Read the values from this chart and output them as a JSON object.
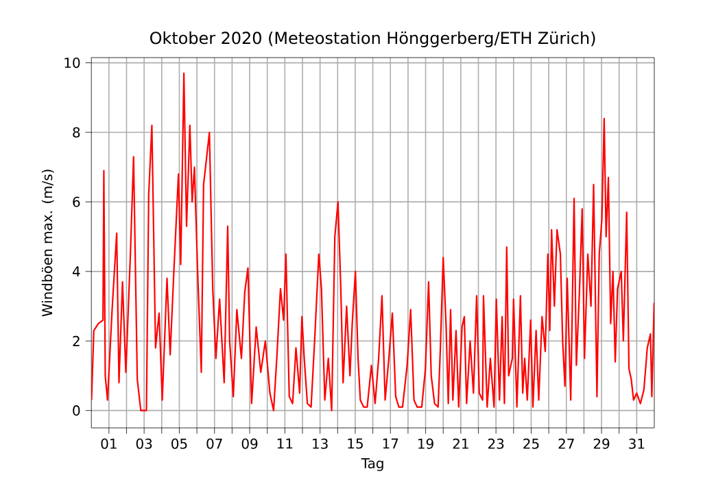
{
  "chart_data": {
    "type": "line",
    "title": "Oktober 2020  (Meteostation Hönggerberg/ETH Zürich)",
    "xlabel": "Tag",
    "ylabel": "Windböen max. (m/s)",
    "xlim": [
      0,
      32
    ],
    "ylim": [
      -0.5,
      10.15
    ],
    "grid": true,
    "xticks": [
      {
        "value": 1,
        "label": "01"
      },
      {
        "value": 2,
        "label": null
      },
      {
        "value": 3,
        "label": "03"
      },
      {
        "value": 4,
        "label": null
      },
      {
        "value": 5,
        "label": "05"
      },
      {
        "value": 6,
        "label": null
      },
      {
        "value": 7,
        "label": "07"
      },
      {
        "value": 8,
        "label": null
      },
      {
        "value": 9,
        "label": "09"
      },
      {
        "value": 10,
        "label": null
      },
      {
        "value": 11,
        "label": "11"
      },
      {
        "value": 12,
        "label": null
      },
      {
        "value": 13,
        "label": "13"
      },
      {
        "value": 14,
        "label": null
      },
      {
        "value": 15,
        "label": "15"
      },
      {
        "value": 16,
        "label": null
      },
      {
        "value": 17,
        "label": "17"
      },
      {
        "value": 18,
        "label": null
      },
      {
        "value": 19,
        "label": "19"
      },
      {
        "value": 20,
        "label": null
      },
      {
        "value": 21,
        "label": "21"
      },
      {
        "value": 22,
        "label": null
      },
      {
        "value": 23,
        "label": "23"
      },
      {
        "value": 24,
        "label": null
      },
      {
        "value": 25,
        "label": "25"
      },
      {
        "value": 26,
        "label": null
      },
      {
        "value": 27,
        "label": "27"
      },
      {
        "value": 28,
        "label": null
      },
      {
        "value": 29,
        "label": "29"
      },
      {
        "value": 30,
        "label": null
      },
      {
        "value": 31,
        "label": "31"
      }
    ],
    "yticks": [
      0,
      2,
      4,
      6,
      8,
      10
    ],
    "series": [
      {
        "color": "#ff0000",
        "x": [
          0.01,
          0.14,
          0.4,
          0.66,
          0.71,
          0.79,
          0.92,
          1.18,
          1.44,
          1.57,
          1.77,
          1.96,
          2.22,
          2.4,
          2.61,
          2.81,
          3.13,
          3.26,
          3.44,
          3.65,
          3.85,
          4.03,
          4.3,
          4.48,
          4.69,
          4.95,
          5.08,
          5.26,
          5.41,
          5.6,
          5.73,
          5.86,
          6.04,
          6.25,
          6.38,
          6.71,
          6.9,
          7.08,
          7.29,
          7.55,
          7.75,
          7.86,
          8.07,
          8.27,
          8.53,
          8.72,
          8.9,
          9.11,
          9.37,
          9.63,
          9.89,
          10.15,
          10.36,
          10.54,
          10.75,
          10.93,
          11.06,
          11.25,
          11.44,
          11.63,
          11.84,
          11.97,
          12.1,
          12.28,
          12.49,
          12.69,
          12.93,
          13.08,
          13.27,
          13.47,
          13.66,
          13.84,
          14.02,
          14.18,
          14.31,
          14.51,
          14.7,
          14.83,
          15.01,
          15.16,
          15.29,
          15.48,
          15.68,
          15.92,
          16.13,
          16.33,
          16.52,
          16.7,
          16.91,
          17.11,
          17.3,
          17.48,
          17.69,
          17.95,
          18.15,
          18.34,
          18.52,
          18.78,
          18.99,
          19.17,
          19.32,
          19.51,
          19.71,
          19.84,
          20.0,
          20.16,
          20.29,
          20.42,
          20.55,
          20.73,
          20.88,
          21.07,
          21.2,
          21.33,
          21.53,
          21.72,
          21.9,
          22.05,
          22.24,
          22.29,
          22.5,
          22.68,
          22.89,
          23.02,
          23.2,
          23.35,
          23.48,
          23.61,
          23.72,
          23.93,
          24.0,
          24.19,
          24.39,
          24.52,
          24.63,
          24.78,
          24.97,
          25.1,
          25.28,
          25.43,
          25.62,
          25.8,
          25.95,
          26.06,
          26.16,
          26.32,
          26.47,
          26.66,
          26.79,
          26.92,
          27.05,
          27.25,
          27.44,
          27.57,
          27.75,
          27.9,
          28.03,
          28.22,
          28.4,
          28.55,
          28.74,
          28.87,
          29.02,
          29.15,
          29.26,
          29.39,
          29.52,
          29.65,
          29.78,
          29.91,
          30.12,
          30.24,
          30.43,
          30.56,
          30.69,
          30.82,
          31.0,
          31.21,
          31.41,
          31.6,
          31.78,
          31.86,
          31.99
        ],
        "values": [
          0.3,
          2.3,
          2.5,
          2.6,
          6.9,
          1.0,
          0.3,
          2.9,
          5.1,
          0.8,
          3.7,
          1.1,
          4.5,
          7.3,
          0.9,
          0.0,
          0.0,
          6.2,
          8.2,
          1.8,
          2.8,
          0.3,
          3.8,
          1.6,
          4.0,
          6.8,
          4.2,
          9.7,
          5.3,
          8.2,
          6.0,
          7.0,
          4.0,
          1.1,
          6.5,
          8.0,
          3.5,
          1.5,
          3.2,
          0.8,
          5.3,
          2.0,
          0.4,
          2.9,
          1.5,
          3.4,
          4.1,
          0.2,
          2.4,
          1.1,
          2.0,
          0.5,
          0.0,
          1.5,
          3.5,
          2.6,
          4.5,
          0.4,
          0.2,
          1.8,
          0.5,
          2.7,
          1.5,
          0.2,
          0.1,
          2.0,
          4.5,
          3.5,
          0.3,
          1.5,
          0.0,
          5.0,
          6.0,
          3.5,
          0.8,
          3.0,
          1.0,
          2.5,
          4.0,
          1.5,
          0.3,
          0.1,
          0.1,
          1.3,
          0.2,
          1.5,
          3.3,
          0.3,
          1.5,
          2.8,
          0.4,
          0.1,
          0.1,
          1.3,
          2.9,
          0.3,
          0.1,
          0.1,
          1.2,
          3.7,
          1.0,
          0.2,
          0.1,
          1.8,
          4.4,
          2.5,
          0.2,
          2.9,
          0.3,
          2.3,
          0.1,
          2.4,
          2.7,
          0.2,
          2.0,
          0.5,
          3.3,
          0.5,
          0.3,
          3.3,
          0.1,
          1.5,
          0.1,
          3.2,
          0.3,
          2.7,
          0.2,
          4.7,
          1.0,
          1.5,
          3.2,
          0.1,
          3.3,
          0.5,
          1.5,
          0.3,
          2.6,
          0.1,
          2.3,
          0.3,
          2.7,
          1.7,
          4.5,
          2.3,
          5.2,
          3.0,
          5.2,
          4.5,
          2.0,
          0.7,
          3.8,
          0.3,
          6.1,
          1.3,
          3.5,
          5.8,
          1.5,
          4.5,
          3.0,
          6.5,
          0.4,
          4.5,
          5.5,
          8.4,
          5.0,
          6.7,
          2.5,
          4.0,
          1.4,
          3.5,
          4.0,
          2.0,
          5.7,
          1.2,
          0.9,
          0.3,
          0.5,
          0.2,
          0.6,
          1.8,
          2.2,
          0.4,
          3.1
        ]
      }
    ]
  }
}
